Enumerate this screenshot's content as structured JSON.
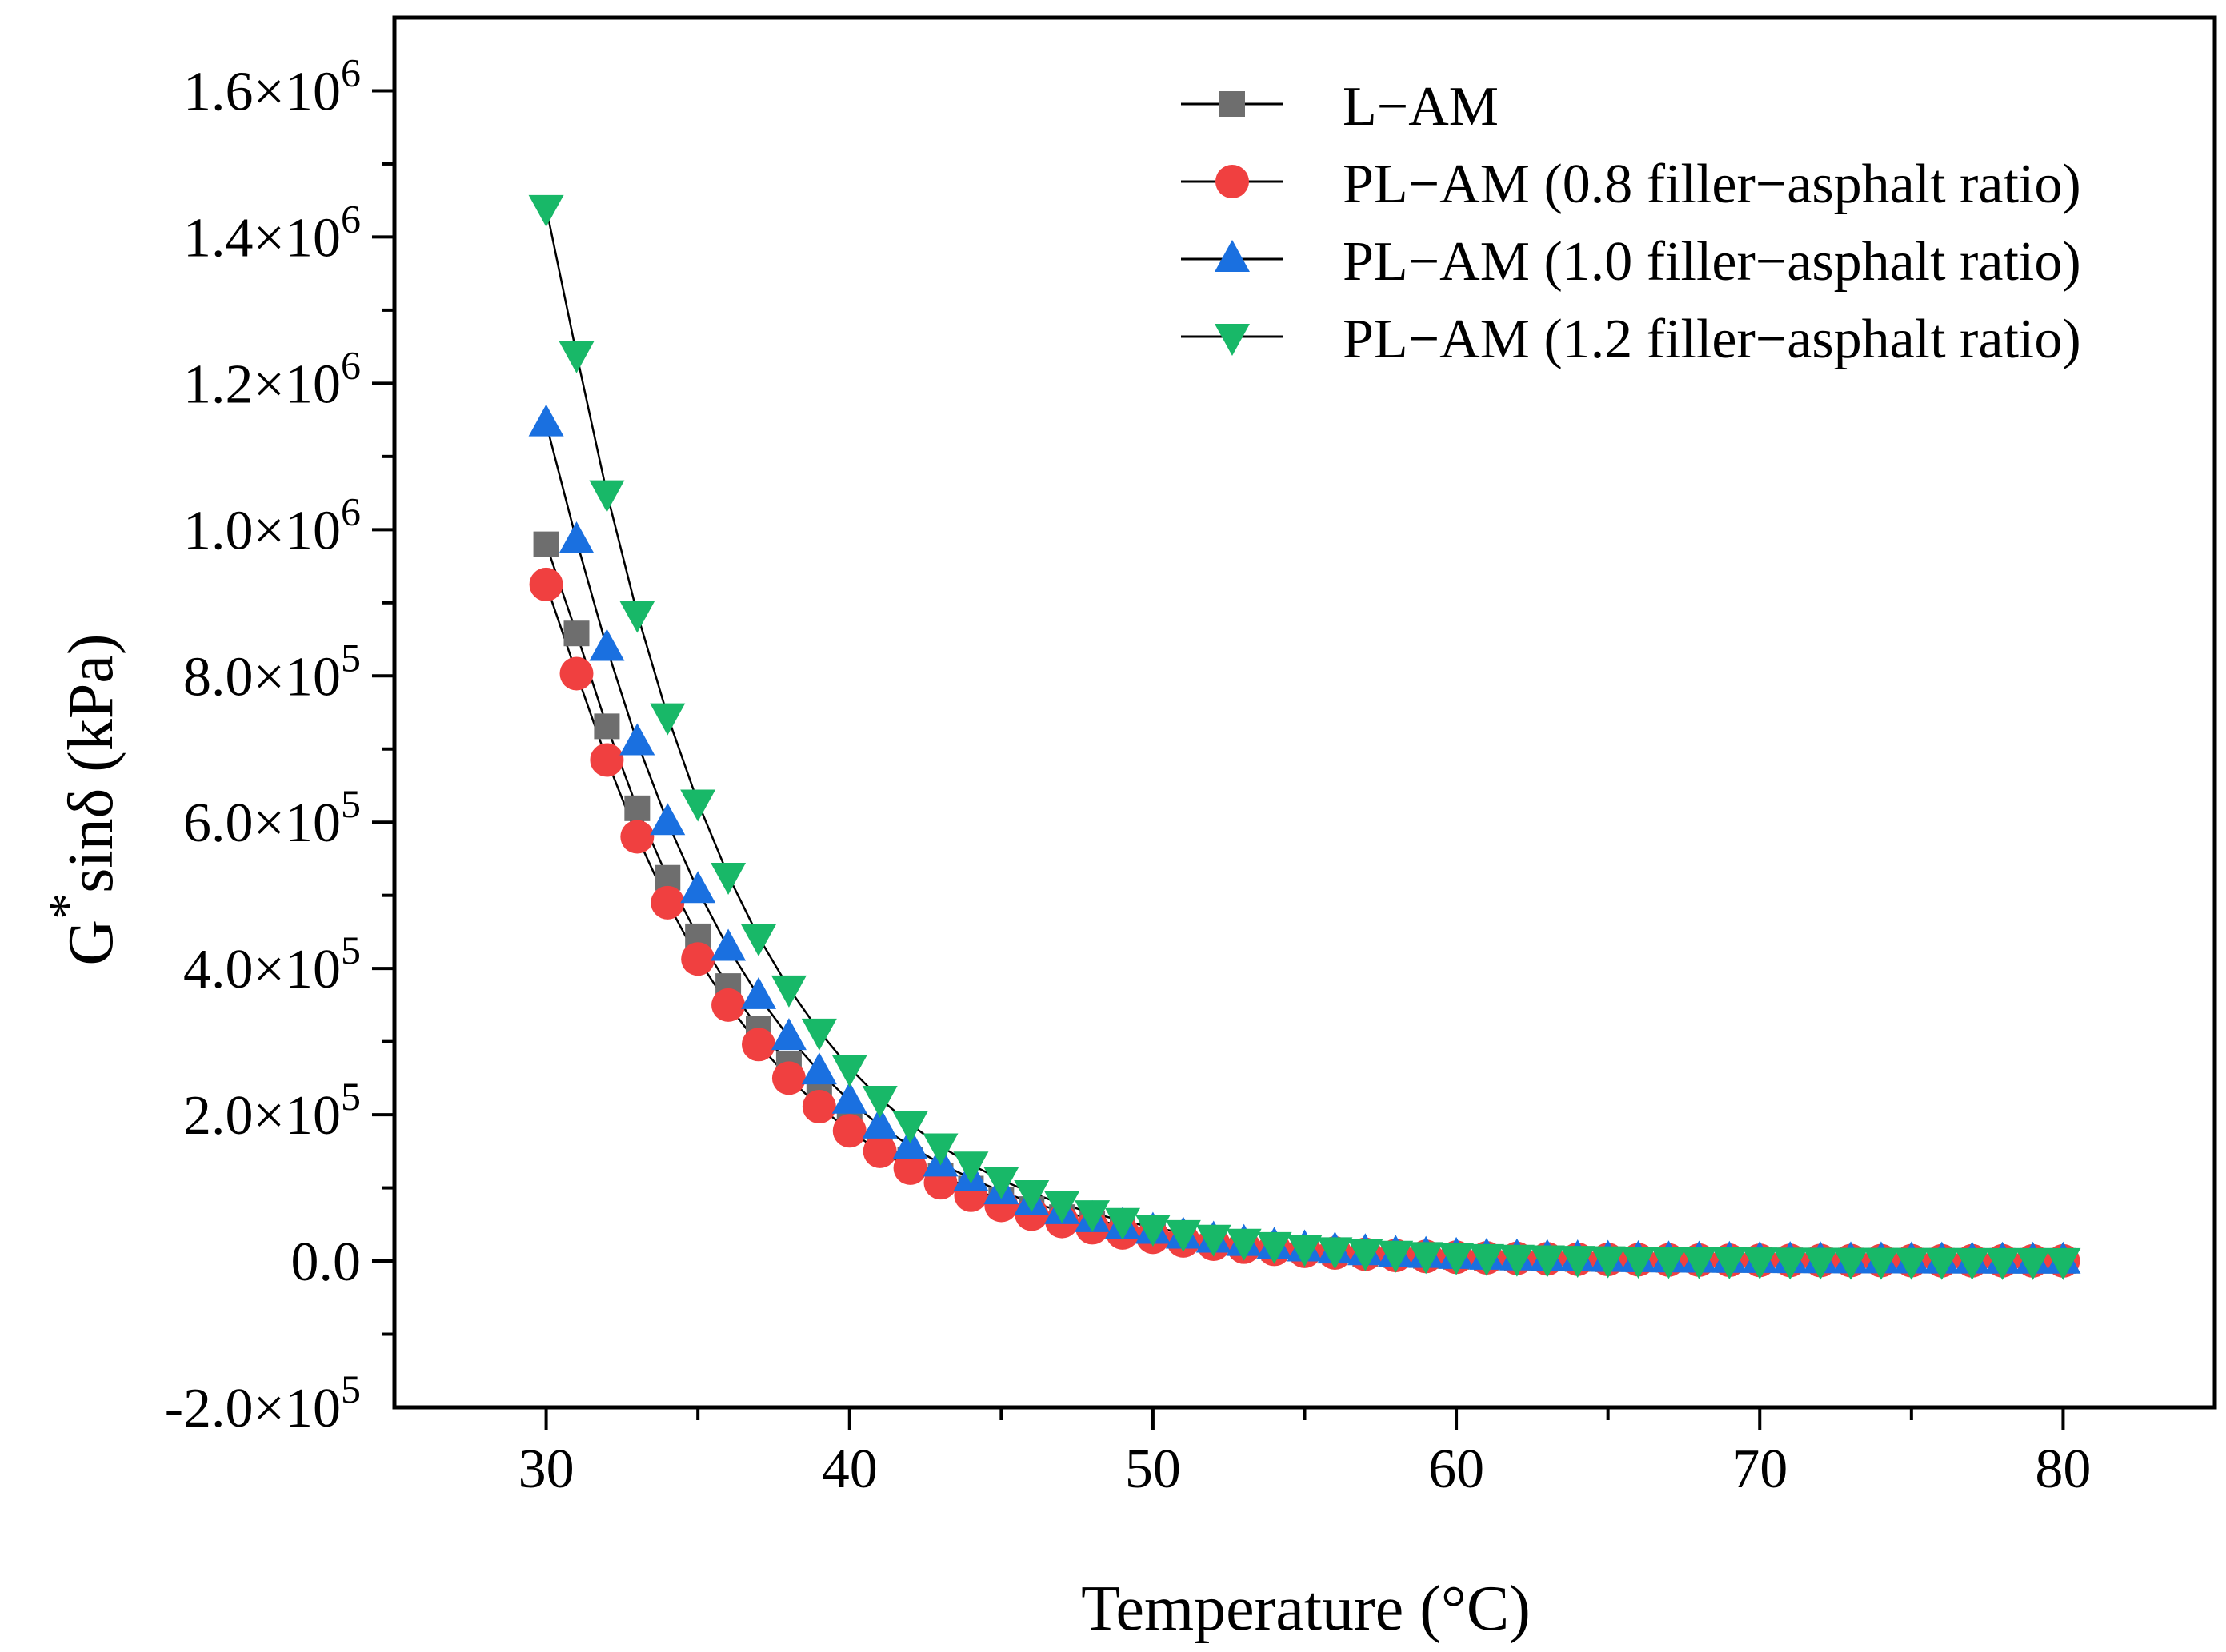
{
  "chart_data": {
    "type": "scatter",
    "title": "",
    "xlabel": "Temperature (°C)",
    "ylabel": "G*sinδ (kPa)",
    "ylabel_parts": {
      "base": "G",
      "sup": "*",
      "rest": "sinδ (kPa)"
    },
    "xlim": [
      25,
      85
    ],
    "ylim": [
      -200000,
      1700000
    ],
    "x_ticks": [
      30,
      40,
      50,
      60,
      70,
      80
    ],
    "x_tick_labels": [
      "30",
      "40",
      "50",
      "60",
      "70",
      "80"
    ],
    "y_ticks": [
      {
        "value": -200000,
        "mant": "-2.0",
        "exp": "5"
      },
      {
        "value": 0,
        "plain": "0.0"
      },
      {
        "value": 200000,
        "mant": "2.0",
        "exp": "5"
      },
      {
        "value": 400000,
        "mant": "4.0",
        "exp": "5"
      },
      {
        "value": 600000,
        "mant": "6.0",
        "exp": "5"
      },
      {
        "value": 800000,
        "mant": "8.0",
        "exp": "5"
      },
      {
        "value": 1000000,
        "mant": "1.0",
        "exp": "6"
      },
      {
        "value": 1200000,
        "mant": "1.2",
        "exp": "6"
      },
      {
        "value": 1400000,
        "mant": "1.4",
        "exp": "6"
      },
      {
        "value": 1600000,
        "mant": "1.6",
        "exp": "6"
      }
    ],
    "tick_multiplier": "×10",
    "legend_position": "top-right",
    "series": [
      {
        "name": "L−AM",
        "marker": "square",
        "color": "#6e6e6e",
        "x": [
          30,
          31,
          32,
          33,
          34,
          35,
          36,
          37,
          38,
          39,
          40,
          41,
          42,
          43,
          44,
          45,
          46,
          47,
          48,
          49,
          50,
          51,
          52,
          53,
          54,
          55,
          56,
          57,
          58,
          59,
          60,
          61,
          62,
          63,
          64,
          65,
          66,
          67,
          68,
          69,
          70,
          71,
          72,
          73,
          74,
          75,
          76,
          77,
          78,
          79,
          80
        ],
        "values": [
          980000,
          858000,
          731000,
          619000,
          524000,
          444000,
          376000,
          318000,
          269000,
          228000,
          193000,
          163000,
          138000,
          117000,
          99000,
          84000,
          71000,
          60000,
          51000,
          43000,
          36000,
          30000,
          25000,
          21000,
          17500,
          14500,
          12000,
          10000,
          8300,
          6900,
          5700,
          4700,
          3900,
          3300,
          2800,
          2400,
          2000,
          1700,
          1500,
          1300,
          1100,
          950,
          820,
          710,
          620,
          540,
          470,
          410,
          360,
          320,
          280
        ]
      },
      {
        "name": "PL−AM (0.8 filler−asphalt ratio)",
        "marker": "circle",
        "color": "#f04040",
        "x": [
          30,
          31,
          32,
          33,
          34,
          35,
          36,
          37,
          38,
          39,
          40,
          41,
          42,
          43,
          44,
          45,
          46,
          47,
          48,
          49,
          50,
          51,
          52,
          53,
          54,
          55,
          56,
          57,
          58,
          59,
          60,
          61,
          62,
          63,
          64,
          65,
          66,
          67,
          68,
          69,
          70,
          71,
          72,
          73,
          74,
          75,
          76,
          77,
          78,
          79,
          80
        ],
        "values": [
          925000,
          803000,
          685000,
          580000,
          490000,
          413000,
          350000,
          296000,
          250000,
          211000,
          178000,
          150000,
          127000,
          107000,
          90000,
          76000,
          64000,
          54000,
          45500,
          38500,
          32500,
          27500,
          23000,
          19000,
          16000,
          13300,
          11000,
          9200,
          7600,
          6300,
          5200,
          4300,
          3600,
          3000,
          2500,
          2100,
          1800,
          1500,
          1300,
          1100,
          950,
          820,
          700,
          600,
          520,
          450,
          390,
          340,
          300,
          260,
          230
        ]
      },
      {
        "name": "PL−AM (1.0 filler−asphalt ratio)",
        "marker": "triangle-up",
        "color": "#1a70e0",
        "x": [
          30,
          31,
          32,
          33,
          34,
          35,
          36,
          37,
          38,
          39,
          40,
          41,
          42,
          43,
          44,
          45,
          46,
          47,
          48,
          49,
          50,
          51,
          52,
          53,
          54,
          55,
          56,
          57,
          58,
          59,
          60,
          61,
          62,
          63,
          64,
          65,
          66,
          67,
          68,
          69,
          70,
          71,
          72,
          73,
          74,
          75,
          76,
          77,
          78,
          79,
          80
        ],
        "values": [
          1145000,
          985000,
          838000,
          709000,
          600000,
          507000,
          428000,
          362000,
          306000,
          259000,
          219000,
          185000,
          157000,
          133000,
          113000,
          95000,
          80000,
          68000,
          57000,
          48000,
          41000,
          34500,
          29000,
          24500,
          20500,
          17000,
          14200,
          11800,
          9800,
          8100,
          6700,
          5600,
          4700,
          3900,
          3300,
          2800,
          2400,
          2000,
          1700,
          1450,
          1250,
          1080,
          930,
          800,
          690,
          600,
          520,
          450,
          390,
          340,
          300
        ]
      },
      {
        "name": "PL−AM (1.2 filler−asphalt ratio)",
        "marker": "triangle-down",
        "color": "#18b868",
        "x": [
          30,
          31,
          32,
          33,
          34,
          35,
          36,
          37,
          38,
          39,
          40,
          41,
          42,
          43,
          44,
          45,
          46,
          47,
          48,
          49,
          50,
          51,
          52,
          53,
          54,
          55,
          56,
          57,
          58,
          59,
          60,
          61,
          62,
          63,
          64,
          65,
          66,
          67,
          68,
          69,
          70,
          71,
          72,
          73,
          74,
          75,
          76,
          77,
          78,
          79,
          80
        ],
        "values": [
          1440000,
          1240000,
          1050000,
          885000,
          745000,
          627000,
          527000,
          443000,
          373000,
          314000,
          264000,
          222000,
          187000,
          157000,
          132000,
          111000,
          93000,
          78000,
          65500,
          55000,
          46000,
          38500,
          32000,
          26500,
          22000,
          18200,
          15000,
          12400,
          10200,
          8400,
          6900,
          5700,
          4700,
          3900,
          3200,
          2600,
          2100,
          1700,
          1400,
          1150,
          950,
          780,
          640,
          530,
          440,
          360,
          300,
          250,
          210,
          170,
          140
        ]
      }
    ]
  }
}
